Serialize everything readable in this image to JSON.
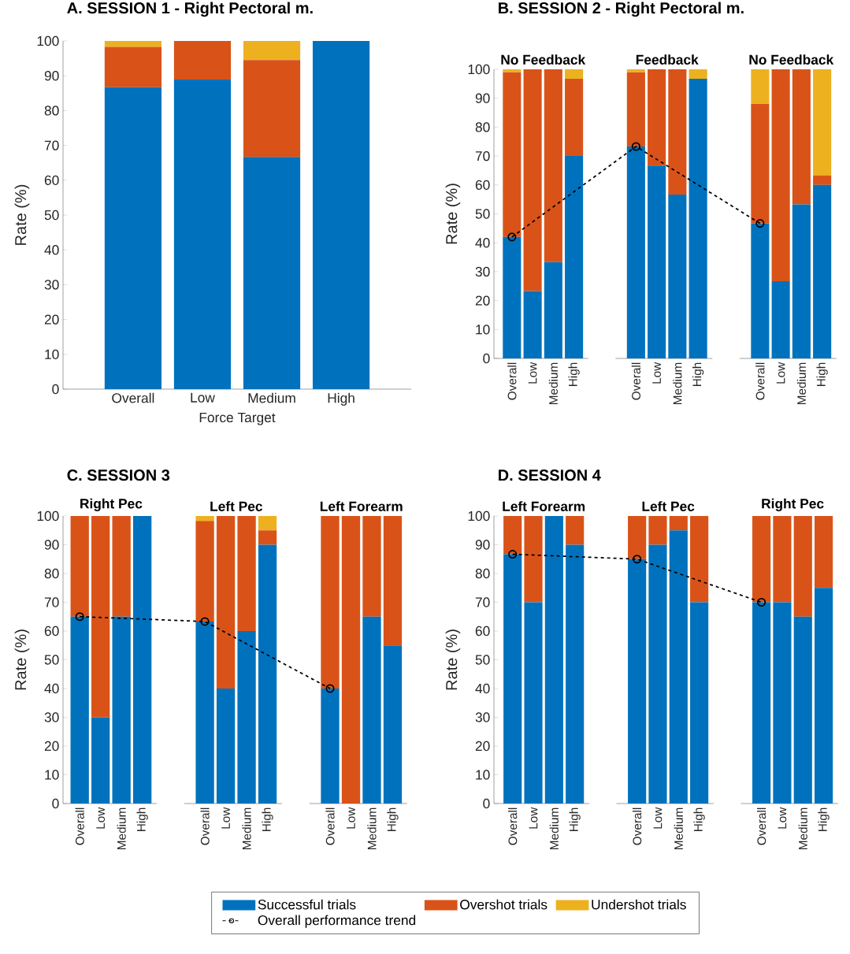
{
  "chart_data": [
    {
      "type": "bar",
      "stacked": true,
      "title": "A. SESSION 1 - Right Pectoral m.",
      "xlabel": "Force Target",
      "ylabel": "Rate (%)",
      "categories": [
        "Overall",
        "Low",
        "Medium",
        "High"
      ],
      "ylim": [
        0,
        100
      ],
      "yticks": [
        0,
        10,
        20,
        30,
        40,
        50,
        60,
        70,
        80,
        90,
        100
      ],
      "series": [
        {
          "color": "#0072bd",
          "values": [
            86.7,
            88.9,
            66.7,
            100
          ]
        },
        {
          "color": "#d95319",
          "values": [
            11.6,
            11.1,
            27.8,
            0
          ]
        },
        {
          "color": "#edb120",
          "values": [
            1.7,
            0,
            5.5,
            0
          ]
        }
      ]
    },
    {
      "type": "bar",
      "stacked": true,
      "title": "B. SESSION 2 - Right Pectoral m.",
      "ylabel": "Rate (%)",
      "annotations": [
        "No Feedback",
        "Feedback",
        "No Feedback"
      ],
      "categories": [
        "Overall",
        "Low",
        "Medium",
        "High",
        null,
        null,
        "Overall",
        "Low",
        "Medium",
        "High",
        null,
        null,
        "Overall",
        "Low",
        "Medium",
        "High"
      ],
      "ylim": [
        0,
        100
      ],
      "yticks": [
        0,
        10,
        20,
        30,
        40,
        50,
        60,
        70,
        80,
        90,
        100
      ],
      "series": [
        {
          "color": "#0072bd",
          "values": [
            42,
            23.3,
            33.3,
            70,
            null,
            null,
            73.3,
            66.7,
            56.7,
            96.7,
            null,
            null,
            46.7,
            26.7,
            53.3,
            60
          ]
        },
        {
          "color": "#d95319",
          "values": [
            57,
            76.7,
            66.7,
            26.7,
            null,
            null,
            25.7,
            33.3,
            43.3,
            0,
            null,
            null,
            41.3,
            73.3,
            46.7,
            3.3
          ]
        },
        {
          "color": "#edb120",
          "values": [
            1,
            0,
            0,
            3.3,
            null,
            null,
            1,
            0,
            0,
            3.3,
            null,
            null,
            12,
            0,
            0,
            36.7
          ]
        },
        {
          "type": "line",
          "color": "#000000",
          "marker": "circle",
          "line_style": "dashed",
          "values": [
            42,
            null,
            null,
            null,
            null,
            null,
            73.3,
            null,
            null,
            null,
            null,
            null,
            46.7,
            null,
            null,
            null
          ]
        }
      ]
    },
    {
      "type": "bar",
      "stacked": true,
      "title": "C. SESSION 3",
      "ylabel": "Rate (%)",
      "annotations": [
        "Right Pec",
        "Left Pec",
        "Left Forearm"
      ],
      "categories": [
        "Overall",
        "Low",
        "Medium",
        "High",
        null,
        null,
        "Overall",
        "Low",
        "Medium",
        "High",
        null,
        null,
        "Overall",
        "Low",
        "Medium",
        "High"
      ],
      "ylim": [
        0,
        100
      ],
      "yticks": [
        0,
        10,
        20,
        30,
        40,
        50,
        60,
        70,
        80,
        90,
        100
      ],
      "series": [
        {
          "color": "#0072bd",
          "values": [
            65,
            30,
            65,
            100,
            null,
            null,
            63.3,
            40,
            60,
            90,
            null,
            null,
            40,
            0,
            65,
            55
          ]
        },
        {
          "color": "#d95319",
          "values": [
            35,
            70,
            35,
            0,
            null,
            null,
            35,
            60,
            40,
            5,
            null,
            null,
            60,
            100,
            35,
            45
          ]
        },
        {
          "color": "#edb120",
          "values": [
            0,
            0,
            0,
            0,
            null,
            null,
            1.7,
            0,
            0,
            5,
            null,
            null,
            0,
            0,
            0,
            0
          ]
        },
        {
          "type": "line",
          "color": "#000000",
          "marker": "circle",
          "line_style": "dashed",
          "values": [
            65,
            null,
            null,
            null,
            null,
            null,
            63.3,
            null,
            null,
            null,
            null,
            null,
            40,
            null,
            null,
            null
          ]
        }
      ]
    },
    {
      "type": "bar",
      "stacked": true,
      "title": "D. SESSION 4",
      "ylabel": "Rate (%)",
      "annotations": [
        "Left Forearm",
        "Left Pec",
        "Right Pec"
      ],
      "categories": [
        "Overall",
        "Low",
        "Medium",
        "High",
        null,
        null,
        "Overall",
        "Low",
        "Medium",
        "High",
        null,
        null,
        "Overall",
        "Low",
        "Medium",
        "High"
      ],
      "ylim": [
        0,
        100
      ],
      "yticks": [
        0,
        10,
        20,
        30,
        40,
        50,
        60,
        70,
        80,
        90,
        100
      ],
      "legend": "bottom",
      "series": [
        {
          "name": "Successful trials",
          "color": "#0072bd",
          "values": [
            86.7,
            70,
            100,
            90,
            null,
            null,
            85,
            90,
            95,
            70,
            null,
            null,
            70,
            70,
            65,
            75
          ]
        },
        {
          "name": "Overshot trials",
          "color": "#d95319",
          "values": [
            13.3,
            30,
            0,
            10,
            null,
            null,
            15,
            10,
            5,
            30,
            null,
            null,
            30,
            30,
            35,
            25
          ]
        },
        {
          "name": "Undershot trials",
          "color": "#edb120",
          "values": [
            0,
            0,
            0,
            0,
            null,
            null,
            0,
            0,
            0,
            0,
            null,
            null,
            0,
            0,
            0,
            0
          ]
        },
        {
          "name": "Overall performance trend",
          "type": "line",
          "color": "#000000",
          "marker": "circle",
          "line_style": "dashed",
          "values": [
            86.7,
            null,
            null,
            null,
            null,
            null,
            85,
            null,
            null,
            null,
            null,
            null,
            70,
            null,
            null,
            null
          ]
        }
      ]
    }
  ]
}
